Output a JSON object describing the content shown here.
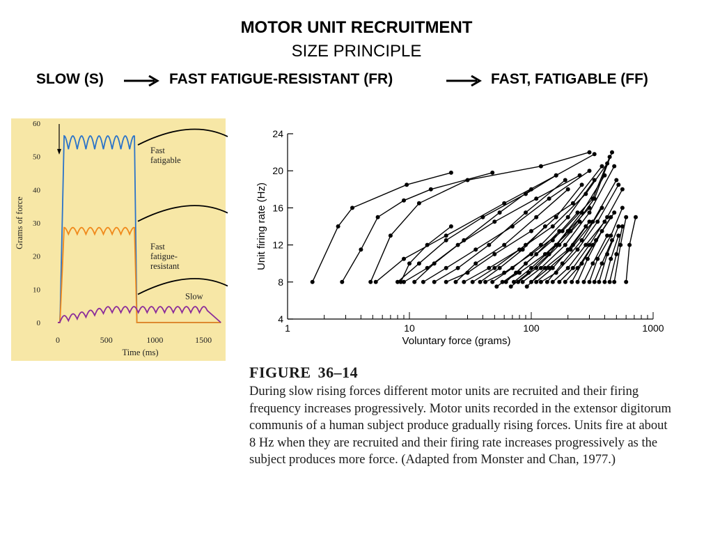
{
  "slide": {
    "title": "MOTOR UNIT RECRUITMENT",
    "subtitle": "SIZE PRINCIPLE",
    "sequence": [
      "SLOW (S)",
      "FAST FATIGUE-RESISTANT (FR)",
      "FAST, FATIGABLE (FF)"
    ]
  },
  "caption": {
    "figure_label": "FIGURE",
    "figure_number": "36–14",
    "text": "During slow rising forces different motor units are recruited and their firing frequency increases progressively. Motor units recorded in the extensor digitorum communis of a human subject produce gradually rising forces. Units fire at about 8 Hz when they are recruited and their firing rate increases progressively as the subject produces more force. (Adapted from Monster and Chan, 1977.)"
  },
  "chart_data": [
    {
      "type": "line",
      "xlabel": "Time (ms)",
      "ylabel": "Grams of force",
      "xticks": [
        0,
        500,
        1000,
        1500
      ],
      "yticks": [
        0,
        10,
        20,
        30,
        40,
        50,
        60
      ],
      "xlim": [
        0,
        1700
      ],
      "ylim": [
        0,
        60
      ],
      "background": "#f7e7a6",
      "series": [
        {
          "name": "Fast fatigable",
          "label_lines": [
            "Fast",
            "fatigable"
          ],
          "color": "#2a73c9",
          "plateau": 55,
          "ripple": 4,
          "end_ms": 790
        },
        {
          "name": "Fast fatigue-resistant",
          "label_lines": [
            "Fast",
            "fatigue-",
            "resistant"
          ],
          "color": "#f08a1c",
          "plateau": 28,
          "ripple": 2,
          "end_ms": 790
        },
        {
          "name": "Slow",
          "label_lines": [
            "Slow"
          ],
          "color": "#8b2c9a",
          "plateau": 5,
          "ripple": 1.2,
          "end_ms": 1540
        }
      ]
    },
    {
      "type": "line",
      "xlabel": "Voluntary force (grams)",
      "ylabel": "Unit firing rate (Hz)",
      "xscale": "log",
      "xlim": [
        1,
        1000
      ],
      "ylim": [
        4,
        24
      ],
      "xtick_labels": [
        "1",
        "10",
        "100",
        "1000"
      ],
      "yticks": [
        4,
        8,
        12,
        16,
        20,
        24
      ],
      "note": "many motor-unit curves; each starts near 8 Hz at recruitment and rises with force",
      "series": [
        {
          "x": [
            1.6,
            2.6,
            3.4,
            9.5,
            22
          ],
          "y": [
            8,
            14,
            16,
            18.5,
            19.8
          ]
        },
        {
          "x": [
            2.8,
            4,
            5.5,
            9,
            15,
            48
          ],
          "y": [
            8,
            11.5,
            15,
            16.8,
            18,
            19.8
          ]
        },
        {
          "x": [
            4.8,
            7,
            12,
            30,
            120,
            300
          ],
          "y": [
            8,
            13,
            16.5,
            19,
            20.5,
            22
          ]
        },
        {
          "x": [
            5.3,
            9,
            20,
            60,
            160,
            330
          ],
          "y": [
            8,
            10.5,
            13,
            16.5,
            19.5,
            21.8
          ]
        },
        {
          "x": [
            8,
            12,
            20,
            40,
            90,
            160
          ],
          "y": [
            8,
            10,
            12.5,
            15,
            17.5,
            19.5
          ]
        },
        {
          "x": [
            8.5,
            10,
            14,
            22
          ],
          "y": [
            8,
            10,
            12,
            14
          ]
        },
        {
          "x": [
            9,
            14,
            25,
            50,
            110,
            250
          ],
          "y": [
            8,
            9.5,
            12,
            14.5,
            17,
            19.5
          ]
        },
        {
          "x": [
            11,
            16,
            28,
            55,
            100
          ],
          "y": [
            8,
            10,
            12.5,
            15.5,
            18
          ]
        },
        {
          "x": [
            13,
            20,
            35,
            70,
            140,
            300
          ],
          "y": [
            8,
            9.5,
            11.5,
            14,
            17,
            20
          ]
        },
        {
          "x": [
            16,
            25,
            45,
            90,
            190
          ],
          "y": [
            8,
            9.5,
            12,
            15.5,
            19
          ]
        },
        {
          "x": [
            20,
            30,
            50,
            100,
            220,
            380
          ],
          "y": [
            8,
            9,
            11,
            13.5,
            16.5,
            20.5
          ]
        },
        {
          "x": [
            24,
            35,
            60,
            110,
            200
          ],
          "y": [
            8,
            10,
            12,
            15,
            18
          ]
        },
        {
          "x": [
            28,
            45,
            80,
            150,
            280,
            420
          ],
          "y": [
            8,
            9.5,
            11.5,
            14,
            17.5,
            20.8
          ]
        },
        {
          "x": [
            33,
            50,
            90,
            160,
            260
          ],
          "y": [
            8,
            9.5,
            12,
            15,
            18.5
          ]
        },
        {
          "x": [
            38,
            55,
            85,
            130
          ],
          "y": [
            8,
            9.5,
            11.5,
            14
          ]
        },
        {
          "x": [
            42,
            60,
            100,
            180,
            320,
            440
          ],
          "y": [
            8,
            9,
            11,
            13.5,
            17,
            21.5
          ]
        },
        {
          "x": [
            48,
            70,
            120,
            200,
            330
          ],
          "y": [
            8,
            9.5,
            12,
            15,
            19
          ]
        },
        {
          "x": [
            52,
            75,
            110,
            170
          ],
          "y": [
            7.5,
            9,
            11,
            13.5
          ]
        },
        {
          "x": [
            58,
            80,
            130,
            210,
            330,
            460
          ],
          "y": [
            8,
            9,
            11,
            13.5,
            17,
            22
          ]
        },
        {
          "x": [
            62,
            90,
            150,
            240
          ],
          "y": [
            8,
            10,
            12.5,
            15.5
          ]
        },
        {
          "x": [
            68,
            95,
            140,
            200,
            300
          ],
          "y": [
            7.5,
            9,
            11,
            13.5,
            16
          ]
        },
        {
          "x": [
            72,
            100,
            160,
            260,
            400
          ],
          "y": [
            8,
            9.5,
            12,
            15.5,
            19.5
          ]
        },
        {
          "x": [
            78,
            110,
            170,
            250
          ],
          "y": [
            8,
            9.5,
            12,
            14.5
          ]
        },
        {
          "x": [
            85,
            120,
            190,
            300,
            480
          ],
          "y": [
            8,
            9.5,
            12,
            15.5,
            20.5
          ]
        },
        {
          "x": [
            92,
            130,
            200,
            280
          ],
          "y": [
            7.5,
            9.5,
            11.5,
            14
          ]
        },
        {
          "x": [
            100,
            140,
            210,
            320,
            500
          ],
          "y": [
            8,
            9.5,
            11.5,
            14.5,
            19
          ]
        },
        {
          "x": [
            110,
            150,
            220,
            300
          ],
          "y": [
            8,
            9.5,
            12,
            14.5
          ]
        },
        {
          "x": [
            120,
            160,
            240,
            350,
            520
          ],
          "y": [
            8,
            9,
            11.5,
            14.5,
            18.5
          ]
        },
        {
          "x": [
            135,
            180,
            260,
            380
          ],
          "y": [
            8,
            10,
            12.5,
            16
          ]
        },
        {
          "x": [
            150,
            200,
            280,
            400
          ],
          "y": [
            8,
            9.5,
            12,
            14.5
          ]
        },
        {
          "x": [
            170,
            220,
            300,
            420,
            560
          ],
          "y": [
            8,
            9.5,
            12,
            15,
            18
          ]
        },
        {
          "x": [
            190,
            240,
            320,
            450
          ],
          "y": [
            8,
            9.5,
            12,
            15
          ]
        },
        {
          "x": [
            215,
            260,
            340,
            480
          ],
          "y": [
            8,
            10,
            12.5,
            15.5
          ]
        },
        {
          "x": [
            240,
            290,
            380
          ],
          "y": [
            8,
            10.5,
            13.5
          ]
        },
        {
          "x": [
            270,
            320,
            420
          ],
          "y": [
            8,
            10,
            13
          ]
        },
        {
          "x": [
            300,
            350,
            450,
            560
          ],
          "y": [
            8,
            10.5,
            13,
            16
          ]
        },
        {
          "x": [
            330,
            380,
            460
          ],
          "y": [
            8,
            10,
            12.5
          ]
        },
        {
          "x": [
            360,
            420,
            520
          ],
          "y": [
            8,
            11,
            14
          ]
        },
        {
          "x": [
            400,
            450,
            520
          ],
          "y": [
            8,
            10.5,
            13
          ]
        },
        {
          "x": [
            440,
            500,
            560
          ],
          "y": [
            8,
            11,
            14
          ]
        },
        {
          "x": [
            480,
            540,
            600
          ],
          "y": [
            8,
            12,
            15
          ]
        },
        {
          "x": [
            600,
            640,
            720
          ],
          "y": [
            8,
            12,
            15
          ]
        }
      ]
    }
  ]
}
